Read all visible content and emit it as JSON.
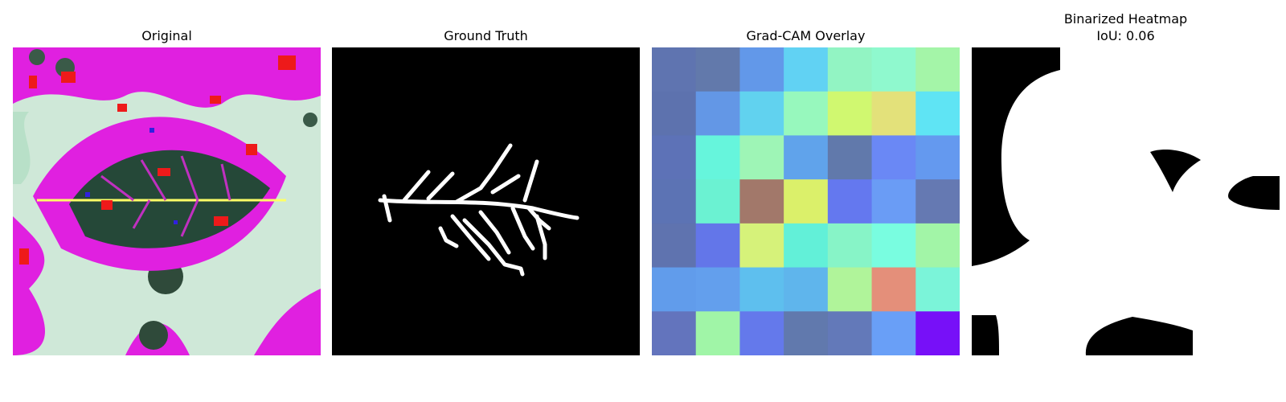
{
  "panels": {
    "original": {
      "title": "Original"
    },
    "ground_truth": {
      "title": "Ground Truth"
    },
    "gradcam": {
      "title": "Grad-CAM Overlay",
      "grid_colors": [
        [
          "#5f74b0",
          "#6279ab",
          "#6298e9",
          "#61d2f3",
          "#92f4c3",
          "#8ff9ce",
          "#a4f5a8"
        ],
        [
          "#5d72ae",
          "#6397e6",
          "#61d2ef",
          "#97f8bd",
          "#d0f870",
          "#e3e17a",
          "#5fe4f4"
        ],
        [
          "#5d72b7",
          "#66f5dc",
          "#9ef5b6",
          "#60a3eb",
          "#6179ab",
          "#6a88f5",
          "#6499ef"
        ],
        [
          "#5c73b4",
          "#6bf2d2",
          "#a2786a",
          "#dbf06a",
          "#6478ef",
          "#6a9cf5",
          "#6579b2"
        ],
        [
          "#5f73af",
          "#6376e9",
          "#d6f27a",
          "#62f0d8",
          "#87f4c7",
          "#79fde0",
          "#a2f5a7"
        ],
        [
          "#619ceb",
          "#639fed",
          "#5ebfee",
          "#5fb5ec",
          "#b0f49a",
          "#e48f7a",
          "#7bf4d9"
        ],
        [
          "#6374bd",
          "#a0f5a7",
          "#6479eb",
          "#6179ad",
          "#6379b9",
          "#699ff7",
          "#7710f8"
        ]
      ]
    },
    "binarized": {
      "title_line1": "Binarized Heatmap",
      "title_line2": "IoU: 0.06"
    }
  },
  "colors": {
    "mask_fg": "#ffffff",
    "mask_bg": "#000000",
    "magenta": "#e020e0",
    "red": "#ee1a1a",
    "mint": "#c8ecd8"
  }
}
